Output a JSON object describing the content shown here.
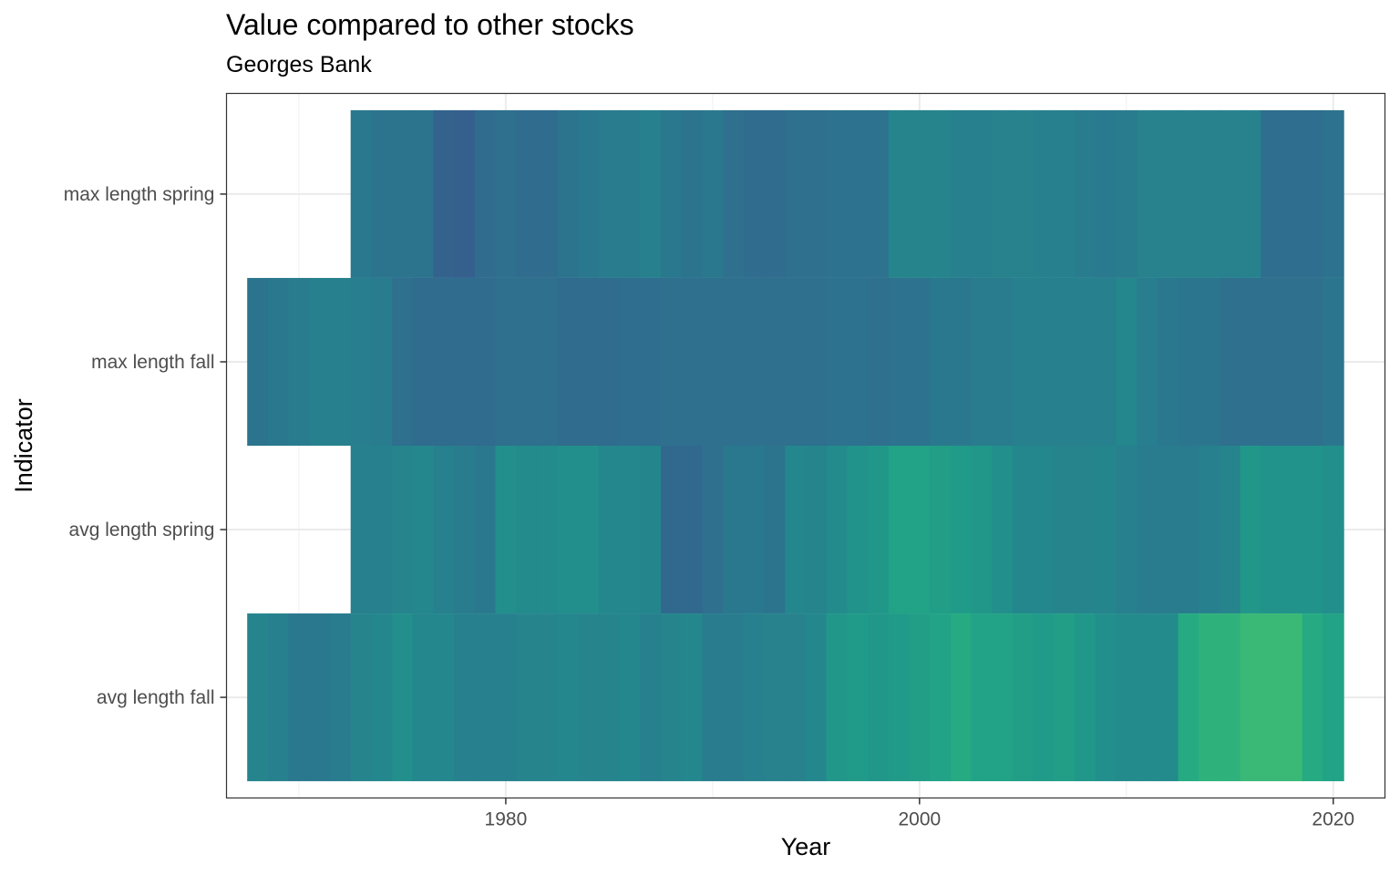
{
  "chart_data": {
    "type": "heatmap",
    "title": "Value compared to other stocks",
    "subtitle": "Georges Bank",
    "xlabel": "Year",
    "ylabel": "Indicator",
    "xlim": [
      1966.5,
      2022.5
    ],
    "x_ticks": [
      1980,
      2000,
      2020
    ],
    "x_tick_labels": [
      "1980",
      "2000",
      "2020"
    ],
    "y_categories": [
      "avg length fall",
      "avg length spring",
      "max length fall",
      "max length spring"
    ],
    "grid": true,
    "legend": "none",
    "colormap": "viridis (value shown by color, 0 = low, 1 = high)",
    "rows": [
      {
        "indicator": "max length spring",
        "start_year": 1973,
        "values": [
          0.5,
          0.48,
          0.48,
          0.48,
          0.4,
          0.38,
          0.44,
          0.46,
          0.44,
          0.44,
          0.48,
          0.5,
          0.52,
          0.52,
          0.54,
          0.5,
          0.48,
          0.5,
          0.46,
          0.44,
          0.44,
          0.46,
          0.46,
          0.47,
          0.47,
          0.47,
          0.56,
          0.56,
          0.56,
          0.54,
          0.54,
          0.55,
          0.55,
          0.54,
          0.54,
          0.52,
          0.51,
          0.52,
          0.55,
          0.55,
          0.55,
          0.55,
          0.55,
          0.55,
          0.45,
          0.45,
          0.45,
          0.47
        ]
      },
      {
        "indicator": "max length fall",
        "start_year": 1968,
        "values": [
          0.48,
          0.5,
          0.52,
          0.54,
          0.54,
          0.53,
          0.52,
          0.46,
          0.44,
          0.44,
          0.44,
          0.44,
          0.46,
          0.46,
          0.46,
          0.44,
          0.44,
          0.44,
          0.45,
          0.45,
          0.46,
          0.46,
          0.46,
          0.46,
          0.46,
          0.46,
          0.46,
          0.46,
          0.47,
          0.47,
          0.46,
          0.47,
          0.47,
          0.5,
          0.5,
          0.52,
          0.52,
          0.54,
          0.54,
          0.54,
          0.54,
          0.54,
          0.58,
          0.53,
          0.5,
          0.49,
          0.49,
          0.46,
          0.46,
          0.46,
          0.46,
          0.46,
          0.49
        ]
      },
      {
        "indicator": "avg length spring",
        "start_year": 1973,
        "values": [
          0.54,
          0.54,
          0.56,
          0.58,
          0.54,
          0.52,
          0.5,
          0.62,
          0.6,
          0.6,
          0.62,
          0.62,
          0.58,
          0.58,
          0.57,
          0.43,
          0.43,
          0.46,
          0.5,
          0.5,
          0.48,
          0.58,
          0.56,
          0.6,
          0.64,
          0.66,
          0.72,
          0.72,
          0.7,
          0.68,
          0.66,
          0.62,
          0.58,
          0.58,
          0.56,
          0.56,
          0.57,
          0.54,
          0.52,
          0.52,
          0.52,
          0.54,
          0.56,
          0.66,
          0.64,
          0.64,
          0.64,
          0.62
        ]
      },
      {
        "indicator": "avg length fall",
        "start_year": 1968,
        "values": [
          0.56,
          0.54,
          0.5,
          0.5,
          0.52,
          0.56,
          0.58,
          0.62,
          0.58,
          0.58,
          0.54,
          0.54,
          0.54,
          0.56,
          0.56,
          0.58,
          0.56,
          0.56,
          0.58,
          0.54,
          0.56,
          0.58,
          0.52,
          0.52,
          0.54,
          0.55,
          0.55,
          0.58,
          0.66,
          0.68,
          0.66,
          0.68,
          0.7,
          0.72,
          0.76,
          0.72,
          0.72,
          0.7,
          0.68,
          0.7,
          0.66,
          0.62,
          0.6,
          0.6,
          0.6,
          0.76,
          0.8,
          0.8,
          0.84,
          0.84,
          0.84,
          0.76,
          0.72
        ]
      }
    ]
  }
}
